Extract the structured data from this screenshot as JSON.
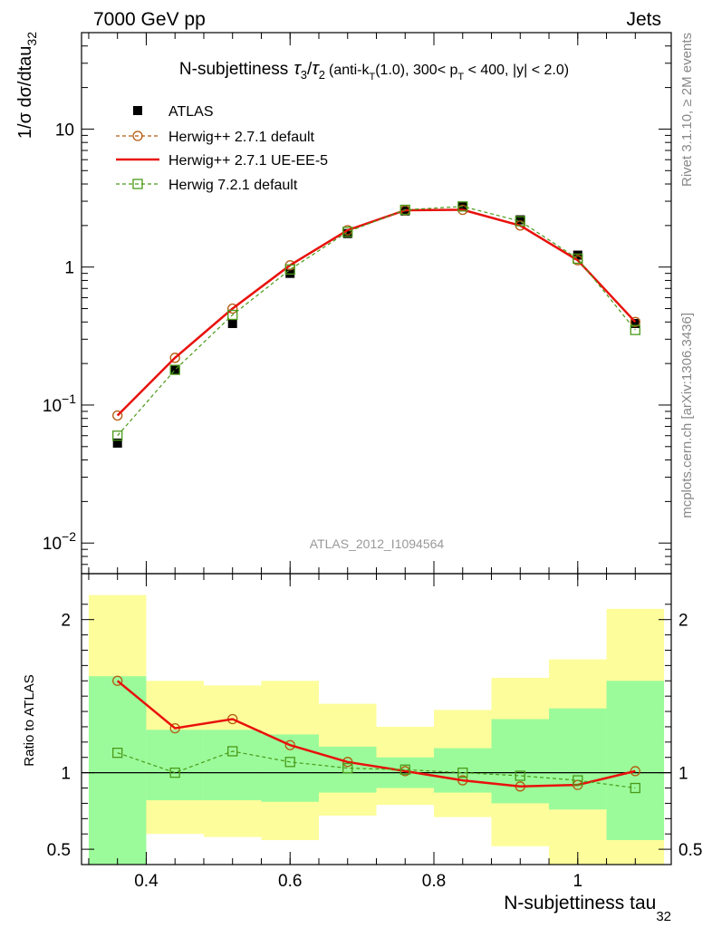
{
  "header": {
    "left": "7000 GeV pp",
    "right": "Jets"
  },
  "side": {
    "rivet": "Rivet 3.1.10, ≥ 2M events",
    "mcplots": "mcplots.cern.ch [arXiv:1306.3436]"
  },
  "chart_data": [
    {
      "type": "line",
      "title": {
        "main": "N-subjettiness",
        "tau3": "3",
        "tau2": "2",
        "cond_a": "(anti-k",
        "cond_T1": "T",
        "cond_b": "(1.0), 300< p",
        "cond_T2": "T",
        "cond_c": " < 400, |y| < 2.0)"
      },
      "ylabel": "1/σ dσ/dtau",
      "ylabel_sub": "32",
      "watermark": "ATLAS_2012_I1094564",
      "yscale": "log",
      "ylim": [
        0.006,
        50
      ],
      "xlim": [
        0.31,
        1.13
      ],
      "yticks": [
        {
          "value": 10,
          "label": "10"
        },
        {
          "value": 1,
          "label": "1"
        },
        {
          "value": 0.1,
          "label": "10",
          "sup": "−1"
        },
        {
          "value": 0.01,
          "label": "10",
          "sup": "−2"
        }
      ],
      "legend_position": "top-left",
      "x": [
        0.36,
        0.44,
        0.52,
        0.6,
        0.68,
        0.76,
        0.84,
        0.92,
        1.0,
        1.08
      ],
      "series": [
        {
          "name": "ATLAS",
          "style": "data",
          "color": "#000000",
          "values": [
            0.053,
            0.18,
            0.39,
            0.9,
            1.75,
            2.55,
            2.75,
            2.2,
            1.22,
            0.39
          ]
        },
        {
          "name": "Herwig++ 2.7.1 default",
          "style": "dashed-circle",
          "color": "#b3590d",
          "values": [
            0.084,
            0.22,
            0.5,
            1.03,
            1.85,
            2.58,
            2.6,
            2.0,
            1.12,
            0.4
          ]
        },
        {
          "name": "Herwig++ 2.7.1 UE-EE-5",
          "style": "solid",
          "color": "#e8110c",
          "values": [
            0.084,
            0.22,
            0.5,
            1.03,
            1.85,
            2.58,
            2.6,
            2.0,
            1.12,
            0.4
          ]
        },
        {
          "name": "Herwig 7.2.1 default",
          "style": "dashed-square",
          "color": "#4a9a18",
          "values": [
            0.06,
            0.18,
            0.45,
            0.96,
            1.8,
            2.6,
            2.75,
            2.15,
            1.15,
            0.35
          ]
        }
      ]
    },
    {
      "type": "line",
      "ylabel": "Ratio to ATLAS",
      "xlabel": "N-subjettiness tau",
      "xlabel_sub": "32",
      "ylim": [
        0.4,
        2.3
      ],
      "xlim": [
        0.31,
        1.13
      ],
      "yticks": [
        {
          "value": 0.5,
          "label": "0.5"
        },
        {
          "value": 1,
          "label": "1"
        },
        {
          "value": 2,
          "label": "2"
        }
      ],
      "xticks": [
        {
          "value": 0.4,
          "label": "0.4"
        },
        {
          "value": 0.6,
          "label": "0.6"
        },
        {
          "value": 0.8,
          "label": "0.8"
        },
        {
          "value": 1.0,
          "label": "1"
        }
      ],
      "bin_edges": [
        0.32,
        0.4,
        0.48,
        0.56,
        0.64,
        0.72,
        0.8,
        0.88,
        0.96,
        1.04,
        1.12
      ],
      "band_stat": {
        "lower": [
          0.1,
          0.82,
          0.82,
          0.81,
          0.87,
          0.9,
          0.87,
          0.8,
          0.76,
          0.56
        ],
        "upper": [
          1.63,
          1.28,
          1.28,
          1.25,
          1.17,
          1.1,
          1.16,
          1.35,
          1.42,
          1.6
        ]
      },
      "band_total": {
        "lower": [
          0.1,
          0.6,
          0.58,
          0.56,
          0.72,
          0.79,
          0.71,
          0.52,
          0.4,
          0.1
        ],
        "upper": [
          2.16,
          1.6,
          1.57,
          1.6,
          1.45,
          1.3,
          1.41,
          1.62,
          1.74,
          2.07
        ]
      },
      "series": [
        {
          "name": "Herwig++ 2.7.1 default",
          "style": "dashed-circle",
          "color": "#b3590d",
          "values": [
            1.6,
            1.29,
            1.35,
            1.18,
            1.07,
            1.01,
            0.95,
            0.91,
            0.92,
            1.01
          ]
        },
        {
          "name": "Herwig++ 2.7.1 UE-EE-5",
          "style": "solid",
          "color": "#e8110c",
          "values": [
            1.6,
            1.29,
            1.35,
            1.18,
            1.07,
            1.01,
            0.95,
            0.91,
            0.92,
            1.01
          ]
        },
        {
          "name": "Herwig 7.2.1 default",
          "style": "dashed-square",
          "color": "#4a9a18",
          "values": [
            1.13,
            1.0,
            1.14,
            1.07,
            1.03,
            1.02,
            1.0,
            0.98,
            0.95,
            0.9
          ]
        }
      ]
    }
  ],
  "colors": {
    "stat_band": "#9bfb9b",
    "total_band": "#fdfd9b",
    "side_text": "#888888",
    "watermark": "#999999"
  }
}
